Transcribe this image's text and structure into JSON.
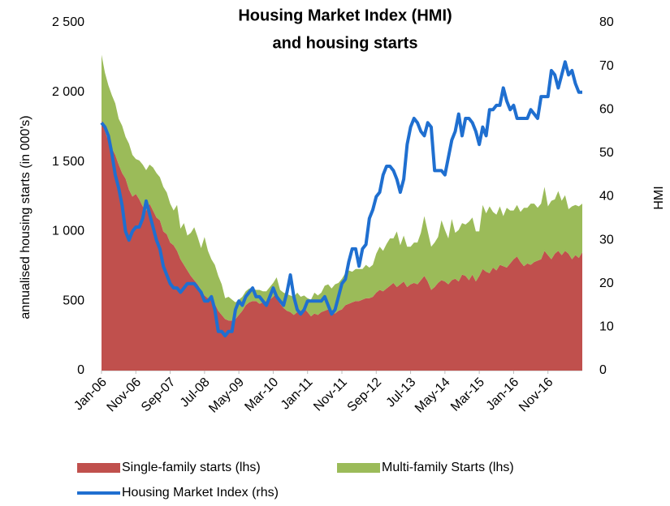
{
  "chart_data": {
    "type": "stacked_area_line",
    "title": [
      "Housing Market Index (HMI)",
      "and housing starts"
    ],
    "y_label": "annualised housing starts (in 000's)",
    "y2_label": "HMI",
    "categories": [
      "Jan-06",
      null,
      null,
      null,
      null,
      null,
      null,
      null,
      null,
      null,
      "Nov-06",
      null,
      null,
      null,
      null,
      null,
      null,
      null,
      null,
      null,
      "Sep-07",
      null,
      null,
      null,
      null,
      null,
      null,
      null,
      null,
      null,
      "Jul-08",
      null,
      null,
      null,
      null,
      null,
      null,
      null,
      null,
      null,
      "May-09",
      null,
      null,
      null,
      null,
      null,
      null,
      null,
      null,
      null,
      "Mar-10",
      null,
      null,
      null,
      null,
      null,
      null,
      null,
      null,
      null,
      "Jan-11",
      null,
      null,
      null,
      null,
      null,
      null,
      null,
      null,
      null,
      "Nov-11",
      null,
      null,
      null,
      null,
      null,
      null,
      null,
      null,
      null,
      "Sep-12",
      null,
      null,
      null,
      null,
      null,
      null,
      null,
      null,
      null,
      "Jul-13",
      null,
      null,
      null,
      null,
      null,
      null,
      null,
      null,
      null,
      "May-14",
      null,
      null,
      null,
      null,
      null,
      null,
      null,
      null,
      null,
      "Mar-15",
      null,
      null,
      null,
      null,
      null,
      null,
      null,
      null,
      null,
      "Jan-16",
      null,
      null,
      null,
      null,
      null,
      null,
      null,
      null,
      null,
      "Nov-16",
      null,
      null,
      null,
      null,
      null,
      null,
      null,
      null,
      null,
      null
    ],
    "series": [
      {
        "name": "Single-family starts (lhs)",
        "color": "#c0504d",
        "values": [
          1800,
          1720,
          1650,
          1600,
          1550,
          1480,
          1420,
          1380,
          1300,
          1250,
          1270,
          1230,
          1180,
          1150,
          1200,
          1150,
          1100,
          1080,
          1000,
          980,
          920,
          900,
          860,
          800,
          760,
          720,
          680,
          650,
          620,
          580,
          540,
          520,
          500,
          480,
          430,
          400,
          370,
          360,
          360,
          370,
          400,
          430,
          470,
          490,
          500,
          500,
          480,
          490,
          500,
          510,
          530,
          560,
          480,
          450,
          430,
          420,
          400,
          420,
          430,
          450,
          420,
          390,
          410,
          400,
          420,
          430,
          440,
          420,
          410,
          430,
          440,
          470,
          480,
          490,
          500,
          500,
          510,
          520,
          520,
          530,
          560,
          580,
          570,
          590,
          610,
          630,
          600,
          620,
          640,
          600,
          620,
          630,
          620,
          650,
          680,
          640,
          580,
          600,
          630,
          650,
          640,
          620,
          650,
          660,
          640,
          690,
          680,
          650,
          690,
          640,
          680,
          730,
          710,
          700,
          740,
          720,
          760,
          750,
          740,
          770,
          800,
          820,
          780,
          750,
          770,
          760,
          780,
          790,
          800,
          860,
          830,
          800,
          840,
          860,
          830,
          860,
          840,
          800,
          830,
          810,
          850
        ]
      },
      {
        "name": "Multi-family Starts (lhs)",
        "color": "#9bbb59",
        "values": [
          470,
          420,
          400,
          380,
          370,
          330,
          340,
          300,
          330,
          300,
          250,
          280,
          300,
          290,
          280,
          310,
          320,
          310,
          320,
          300,
          280,
          250,
          330,
          220,
          300,
          250,
          310,
          380,
          340,
          300,
          420,
          340,
          300,
          280,
          250,
          220,
          150,
          170,
          150,
          120,
          110,
          100,
          100,
          100,
          90,
          80,
          100,
          80,
          70,
          90,
          100,
          110,
          100,
          110,
          120,
          120,
          130,
          140,
          100,
          90,
          100,
          120,
          150,
          140,
          140,
          180,
          180,
          170,
          210,
          200,
          220,
          230,
          240,
          220,
          230,
          230,
          220,
          240,
          220,
          230,
          280,
          310,
          290,
          320,
          340,
          320,
          400,
          280,
          330,
          290,
          270,
          290,
          300,
          340,
          430,
          360,
          310,
          320,
          330,
          430,
          370,
          330,
          440,
          330,
          370,
          370,
          370,
          420,
          410,
          360,
          320,
          460,
          420,
          480,
          400,
          400,
          420,
          360,
          430,
          380,
          350,
          370,
          360,
          420,
          400,
          440,
          420,
          380,
          400,
          460,
          350,
          420,
          390,
          430,
          390,
          400,
          320,
          380,
          360,
          370,
          350
        ]
      },
      {
        "name": "Housing Market Index (rhs)",
        "color": "#1f6fd0",
        "axis": "y2",
        "values": [
          57,
          56,
          54,
          50,
          45,
          42,
          38,
          32,
          30,
          32,
          33,
          33,
          35,
          39,
          36,
          33,
          30,
          28,
          24,
          22,
          20,
          19,
          19,
          18,
          19,
          20,
          20,
          20,
          19,
          18,
          16,
          16,
          17,
          14,
          9,
          9,
          8,
          9,
          9,
          14,
          16,
          15,
          17,
          18,
          19,
          17,
          17,
          16,
          15,
          17,
          19,
          17,
          16,
          15,
          18,
          22,
          17,
          14,
          13,
          14,
          16,
          16,
          16,
          16,
          16,
          17,
          15,
          13,
          14,
          17,
          20,
          21,
          25,
          28,
          28,
          24,
          28,
          29,
          35,
          37,
          40,
          41,
          45,
          47,
          47,
          46,
          44,
          41,
          44,
          52,
          56,
          58,
          57,
          55,
          54,
          57,
          56,
          46,
          46,
          46,
          45,
          49,
          53,
          55,
          59,
          54,
          58,
          58,
          57,
          55,
          52,
          56,
          54,
          60,
          60,
          61,
          61,
          65,
          62,
          60,
          61,
          58,
          58,
          58,
          58,
          60,
          59,
          58,
          63,
          63,
          63,
          69,
          68,
          65,
          68,
          71,
          68,
          69,
          66,
          64,
          64
        ]
      }
    ],
    "ylim": [
      0,
      2500
    ],
    "yticks": [
      0,
      500,
      {
        "value": 1000,
        "label": "1 000"
      },
      {
        "value": 1500,
        "label": "1 500"
      },
      {
        "value": 2000,
        "label": "2 000"
      },
      {
        "value": 2500,
        "label": "2 500"
      }
    ],
    "y2lim": [
      0,
      80
    ],
    "y2ticks": [
      0,
      10,
      20,
      30,
      40,
      50,
      60,
      70,
      80
    ]
  }
}
